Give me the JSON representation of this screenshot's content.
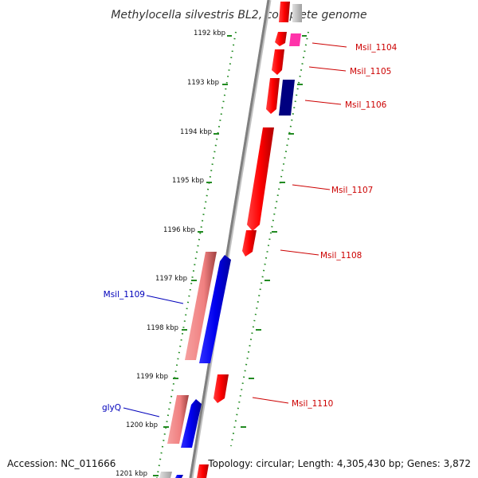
{
  "title": "Methylocella silvestris BL2, complete genome",
  "ticks": [
    {
      "label": "1192 kbp"
    },
    {
      "label": "1193 kbp"
    },
    {
      "label": "1194 kbp"
    },
    {
      "label": "1195 kbp"
    },
    {
      "label": "1196 kbp"
    },
    {
      "label": "1197 kbp"
    },
    {
      "label": "1198 kbp"
    },
    {
      "label": "1199 kbp"
    },
    {
      "label": "1200 kbp"
    },
    {
      "label": "1201 kbp"
    }
  ],
  "genes": [
    {
      "label": "Msil_1104",
      "strand": "reverse",
      "color": "#cc0000"
    },
    {
      "label": "Msil_1105",
      "strand": "reverse",
      "color": "#cc0000"
    },
    {
      "label": "Msil_1106",
      "strand": "reverse",
      "color": "#cc0000"
    },
    {
      "label": "Msil_1107",
      "strand": "reverse",
      "color": "#cc0000"
    },
    {
      "label": "Msil_1108",
      "strand": "reverse",
      "color": "#cc0000"
    },
    {
      "label": "Msil_1109",
      "strand": "forward",
      "color": "#0000bb"
    },
    {
      "label": "Msil_1110",
      "strand": "reverse",
      "color": "#cc0000"
    },
    {
      "label": "glyQ",
      "strand": "forward",
      "color": "#0000bb"
    }
  ],
  "colors": {
    "backbone": "#808080",
    "tick": "#228B22",
    "cds_red": "#ff0000",
    "cds_blue": "#0000ee",
    "rna_pink": "#ff33aa",
    "pseudo_pink": "#f08080",
    "navy": "#000080",
    "grey_feature": "#c8c8c8"
  },
  "footer": {
    "accession": "Accession: NC_011666",
    "summary": "Topology: circular; Length: 4,305,430 bp; Genes: 3,872"
  }
}
